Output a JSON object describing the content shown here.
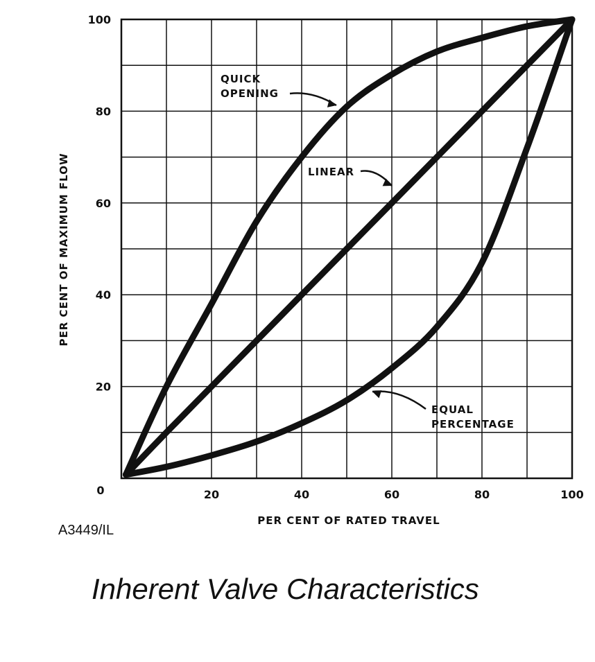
{
  "chart_data": {
    "type": "line",
    "title": "Inherent Valve Characteristics",
    "xlabel": "PER CENT OF RATED TRAVEL",
    "ylabel": "PER CENT OF MAXIMUM FLOW",
    "xlim": [
      0,
      100
    ],
    "ylim": [
      0,
      100
    ],
    "grid": true,
    "xticks": [
      "0",
      "20",
      "40",
      "60",
      "80",
      "100"
    ],
    "yticks": [
      "0",
      "20",
      "40",
      "60",
      "80",
      "100"
    ],
    "x": [
      0,
      10,
      20,
      30,
      40,
      50,
      60,
      70,
      80,
      90,
      100
    ],
    "series": [
      {
        "name": "QUICK OPENING",
        "values": [
          0,
          20,
          38,
          56,
          70,
          81,
          88,
          93,
          96,
          98.5,
          100
        ]
      },
      {
        "name": "LINEAR",
        "values": [
          0,
          10,
          20,
          30,
          40,
          50,
          60,
          70,
          80,
          90,
          100
        ]
      },
      {
        "name": "EQUAL PERCENTAGE",
        "values": [
          0,
          2.5,
          5,
          8,
          12,
          17,
          24,
          33,
          47,
          72,
          100
        ]
      }
    ],
    "annotations": [
      {
        "lines": [
          "QUICK",
          "OPENING"
        ],
        "points_to": [
          50,
          81
        ]
      },
      {
        "lines": [
          "LINEAR"
        ],
        "points_to": [
          60,
          64
        ]
      },
      {
        "lines": [
          "EQUAL",
          "PERCENTAGE"
        ],
        "points_to": [
          55,
          19
        ]
      }
    ]
  },
  "figure_code": "A3449/IL"
}
